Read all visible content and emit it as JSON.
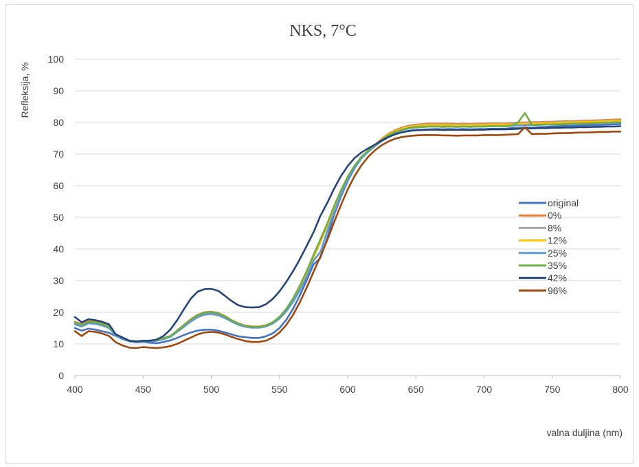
{
  "chart_data": {
    "type": "line",
    "title": "NKS, 7°C",
    "xlabel": "valna duljina (nm)",
    "ylabel": "Refleksija, %",
    "xlim": [
      400,
      800
    ],
    "ylim": [
      0,
      100
    ],
    "xticks": [
      400,
      450,
      500,
      550,
      600,
      650,
      700,
      750,
      800
    ],
    "yticks": [
      0,
      10,
      20,
      30,
      40,
      50,
      60,
      70,
      80,
      90,
      100
    ],
    "grid": "horizontal",
    "legend_position": "right",
    "x": [
      400,
      405,
      410,
      415,
      420,
      425,
      430,
      435,
      440,
      445,
      450,
      455,
      460,
      465,
      470,
      475,
      480,
      485,
      490,
      495,
      500,
      505,
      510,
      515,
      520,
      525,
      530,
      535,
      540,
      545,
      550,
      555,
      560,
      565,
      570,
      575,
      580,
      585,
      590,
      595,
      600,
      605,
      610,
      615,
      620,
      625,
      630,
      635,
      640,
      645,
      650,
      655,
      660,
      665,
      670,
      675,
      680,
      685,
      690,
      695,
      700,
      705,
      710,
      715,
      720,
      725,
      730,
      735,
      740,
      745,
      750,
      755,
      760,
      765,
      770,
      775,
      780,
      785,
      790,
      795,
      800
    ],
    "series": [
      {
        "name": "original",
        "color": "#4472c4",
        "values": [
          15,
          14.2,
          14.8,
          14.5,
          14,
          13.5,
          12.5,
          11.5,
          10.8,
          10.5,
          10.6,
          10.4,
          10.2,
          10.6,
          11.1,
          11.9,
          12.8,
          13.6,
          14.2,
          14.5,
          14.5,
          14.2,
          13.6,
          13,
          12.4,
          12.1,
          11.9,
          11.9,
          12.4,
          13.3,
          15,
          17.6,
          21.1,
          25.4,
          30.1,
          35.1,
          37.2,
          43.3,
          50.7,
          56.5,
          61.5,
          65.5,
          68.6,
          70.8,
          72.5,
          74.1,
          75.4,
          76.3,
          76.9,
          77.4,
          77.6,
          77.7,
          77.8,
          77.9,
          77.8,
          77.9,
          77.8,
          77.9,
          77.8,
          77.9,
          77.9,
          78,
          78,
          78,
          78.2,
          78.2,
          78.3,
          78.4,
          78.5,
          78.6,
          78.7,
          78.8,
          78.9,
          78.9,
          79,
          79.1,
          79.2,
          79.2,
          79.3,
          79.4,
          79.5
        ]
      },
      {
        "name": "0%",
        "color": "#ed7d31",
        "values": [
          17,
          16.2,
          17.2,
          17,
          16.5,
          15.5,
          13,
          12,
          11,
          10.8,
          11,
          11,
          11.2,
          11.8,
          12.5,
          14.2,
          16,
          17.8,
          19.2,
          20,
          20.2,
          19.8,
          18.8,
          17.5,
          16.5,
          15.8,
          15.5,
          15.5,
          15.9,
          16.8,
          18.5,
          21,
          24.2,
          28.2,
          32.6,
          37.6,
          42.5,
          47.5,
          53,
          58,
          62.5,
          66.1,
          69,
          71.1,
          72.9,
          74.8,
          76.5,
          77.6,
          78.4,
          79,
          79.3,
          79.5,
          79.6,
          79.6,
          79.6,
          79.6,
          79.5,
          79.6,
          79.5,
          79.6,
          79.6,
          79.7,
          79.7,
          79.7,
          79.8,
          79.9,
          80,
          80.1,
          80.1,
          80.2,
          80.2,
          80.3,
          80.4,
          80.4,
          80.5,
          80.6,
          80.6,
          80.7,
          80.8,
          80.9,
          81
        ]
      },
      {
        "name": "8%",
        "color": "#a5a5a5",
        "values": [
          16.5,
          15.8,
          16.8,
          16.6,
          16.1,
          15.2,
          12.8,
          11.8,
          10.9,
          10.7,
          10.9,
          10.9,
          11,
          11.6,
          12.3,
          13.8,
          15.4,
          17,
          18.4,
          19.2,
          19.4,
          19,
          18.1,
          17,
          16.1,
          15.5,
          15.2,
          15.2,
          15.6,
          16.6,
          18.3,
          20.8,
          24,
          28,
          32.4,
          37.4,
          42.2,
          47.2,
          52.8,
          57.8,
          62.3,
          66,
          68.9,
          71,
          72.8,
          74.6,
          76.3,
          77.4,
          78.2,
          78.8,
          79.1,
          79.3,
          79.4,
          79.4,
          79.4,
          79.4,
          79.3,
          79.4,
          79.3,
          79.4,
          79.4,
          79.5,
          79.5,
          79.5,
          79.6,
          79.7,
          79.8,
          79.9,
          79.9,
          80,
          80,
          80.1,
          80.2,
          80.2,
          80.3,
          80.4,
          80.4,
          80.5,
          80.6,
          80.7,
          80.7
        ]
      },
      {
        "name": "12%",
        "color": "#ffc000",
        "values": [
          16.6,
          15.9,
          16.9,
          16.7,
          16.2,
          15.3,
          12.9,
          11.9,
          10.9,
          10.7,
          10.9,
          10.9,
          11.1,
          11.7,
          12.4,
          14,
          15.7,
          17.4,
          18.8,
          19.6,
          19.8,
          19.4,
          18.4,
          17.2,
          16.2,
          15.6,
          15.3,
          15.3,
          15.7,
          16.7,
          18.4,
          20.9,
          24.1,
          28.1,
          32.5,
          37.5,
          42.3,
          47.3,
          52.9,
          57.9,
          62.4,
          66,
          68.9,
          71,
          72.8,
          74.6,
          76.3,
          77.3,
          78.1,
          78.6,
          78.9,
          79.1,
          79.2,
          79.2,
          79.2,
          79.2,
          79.1,
          79.2,
          79.1,
          79.2,
          79.2,
          79.3,
          79.3,
          79.3,
          79.4,
          79.5,
          79.6,
          79.7,
          79.7,
          79.8,
          79.8,
          79.9,
          80,
          80,
          80.1,
          80.2,
          80.2,
          80.3,
          80.4,
          80.5,
          80.5
        ]
      },
      {
        "name": "25%",
        "color": "#5b9bd5",
        "values": [
          16.2,
          15.5,
          16.5,
          16.3,
          15.8,
          15,
          12.6,
          11.7,
          10.8,
          10.6,
          10.8,
          10.8,
          11,
          11.5,
          12.2,
          13.8,
          15.5,
          17.2,
          18.6,
          19.4,
          19.6,
          19.2,
          18.2,
          17,
          16,
          15.4,
          15.1,
          15.1,
          15.5,
          16.4,
          18,
          20.3,
          23.3,
          27,
          31.2,
          36.4,
          39,
          45.5,
          51.5,
          57,
          61.9,
          65.6,
          68.6,
          70.7,
          72.5,
          74.2,
          75.8,
          76.9,
          77.6,
          78.1,
          78.4,
          78.6,
          78.7,
          78.7,
          78.6,
          78.7,
          78.6,
          78.7,
          78.6,
          78.7,
          78.7,
          78.8,
          78.8,
          78.8,
          78.9,
          79,
          79.1,
          79.2,
          79.2,
          79.3,
          79.3,
          79.4,
          79.5,
          79.5,
          79.6,
          79.7,
          79.7,
          79.8,
          79.9,
          80,
          80
        ]
      },
      {
        "name": "35%",
        "color": "#70ad47",
        "values": [
          16.8,
          16,
          17,
          16.8,
          16.3,
          15.4,
          13,
          12,
          11,
          10.8,
          11,
          11,
          11.2,
          11.8,
          12.5,
          14.2,
          16,
          17.7,
          19.1,
          19.9,
          20.1,
          19.7,
          18.7,
          17.4,
          16.4,
          15.7,
          15.4,
          15.4,
          15.8,
          16.8,
          18.5,
          21.1,
          24.4,
          28.5,
          33,
          38.2,
          43,
          48,
          53.5,
          58.5,
          62.8,
          66.3,
          69.1,
          71.1,
          72.8,
          74.5,
          76,
          77,
          77.7,
          78.2,
          78.5,
          78.6,
          78.7,
          78.7,
          78.6,
          78.7,
          78.6,
          78.7,
          78.6,
          78.7,
          78.7,
          78.8,
          78.8,
          78.8,
          79,
          80,
          83,
          79.2,
          79.3,
          79.3,
          79.4,
          79.4,
          79.5,
          79.6,
          79.6,
          79.7,
          79.8,
          79.8,
          79.9,
          80,
          80.1
        ]
      },
      {
        "name": "42%",
        "color": "#264478",
        "values": [
          18.5,
          16.8,
          17.8,
          17.5,
          17,
          16.2,
          13,
          12,
          11,
          10.8,
          11,
          11,
          11.4,
          12.5,
          14.5,
          17.5,
          21,
          24.3,
          26.5,
          27.3,
          27.4,
          26.8,
          25.2,
          23.5,
          22.2,
          21.6,
          21.5,
          21.6,
          22.5,
          24.2,
          26.6,
          29.6,
          33,
          36.8,
          41,
          45.3,
          50.5,
          54.5,
          59,
          63,
          66.2,
          68.7,
          70.5,
          71.8,
          73,
          74.3,
          75.4,
          76.3,
          76.9,
          77.3,
          77.5,
          77.6,
          77.7,
          77.7,
          77.6,
          77.7,
          77.6,
          77.7,
          77.6,
          77.7,
          77.7,
          77.8,
          77.8,
          77.8,
          77.9,
          78,
          78.1,
          78.1,
          78.2,
          78.2,
          78.3,
          78.3,
          78.4,
          78.4,
          78.5,
          78.5,
          78.6,
          78.6,
          78.7,
          78.7,
          78.8
        ]
      },
      {
        "name": "96%",
        "color": "#9e480e",
        "values": [
          14,
          12.5,
          14,
          13.8,
          13.3,
          12.5,
          10.5,
          9.5,
          8.8,
          8.7,
          9,
          8.8,
          8.7,
          8.9,
          9.3,
          10,
          11,
          12,
          13,
          13.6,
          13.8,
          13.6,
          13,
          12.2,
          11.5,
          10.9,
          10.6,
          10.6,
          11,
          12,
          13.6,
          16,
          19.2,
          23.2,
          27.8,
          32.8,
          37.6,
          42.8,
          48.4,
          53.8,
          58.8,
          63,
          66.4,
          69.1,
          71.2,
          72.8,
          74,
          74.9,
          75.4,
          75.7,
          75.9,
          76,
          76,
          76,
          75.9,
          75.9,
          75.8,
          75.9,
          75.9,
          75.9,
          76,
          76,
          76,
          76.1,
          76.2,
          76.3,
          78.5,
          76.3,
          76.4,
          76.4,
          76.5,
          76.6,
          76.6,
          76.7,
          76.8,
          76.8,
          76.9,
          77,
          77,
          77.1,
          77.1
        ]
      }
    ]
  }
}
